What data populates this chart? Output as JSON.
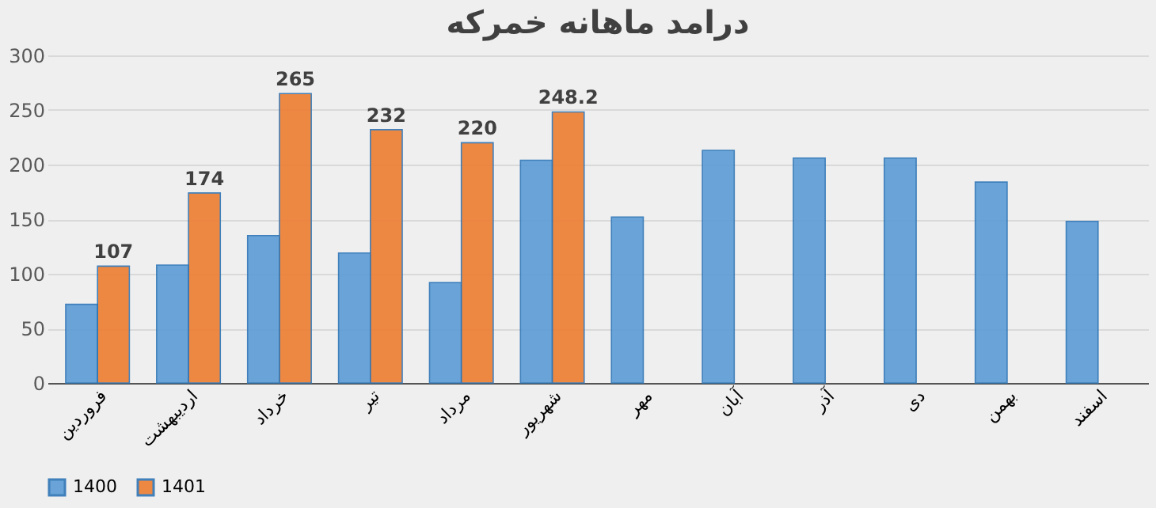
{
  "chart_data": {
    "type": "bar",
    "title": "درامد ماهانه خمرکه",
    "categories": [
      "فروردین",
      "اردیبهشت",
      "خرداد",
      "تیر",
      "مرداد",
      "شهریور",
      "مهر",
      "آبان",
      "آذر",
      "دی",
      "بهمن",
      "اسفند"
    ],
    "series": [
      {
        "name": "1400",
        "color": "#5b9bd5",
        "values": [
          72,
          108,
          135,
          119,
          92,
          204,
          152,
          213,
          206,
          206,
          184,
          148
        ]
      },
      {
        "name": "1401",
        "color": "#ed7d31",
        "values": [
          107,
          174,
          265,
          232,
          220,
          248.2,
          null,
          null,
          null,
          null,
          null,
          null
        ],
        "value_labels": [
          "107",
          "174",
          "265",
          "232",
          "220",
          "248.2",
          null,
          null,
          null,
          null,
          null,
          null
        ]
      }
    ],
    "ylim": [
      0,
      300
    ],
    "yticks": [
      0,
      50,
      100,
      150,
      200,
      250,
      300
    ],
    "grid": "y",
    "legend": "bottom"
  }
}
